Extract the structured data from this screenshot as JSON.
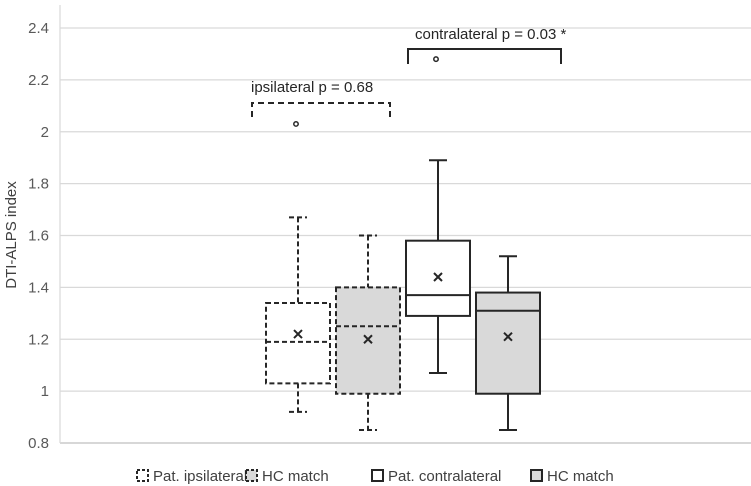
{
  "chart_data": {
    "type": "box",
    "title": "",
    "xlabel": "",
    "ylabel": "DTI-ALPS index",
    "ylim": [
      0.8,
      2.4
    ],
    "yticks": [
      "0.8",
      "1",
      "1.2",
      "1.4",
      "1.6",
      "1.8",
      "2",
      "2.2",
      "2.4"
    ],
    "grid": true,
    "legend_position": "bottom",
    "series": [
      {
        "name": "Pat. ipsilateral",
        "style": "dashed",
        "fill": "#ffffff",
        "q1": 1.03,
        "median": 1.19,
        "q3": 1.34,
        "whisker_low": 0.92,
        "whisker_high": 1.67,
        "mean": 1.22,
        "outliers": [
          2.03
        ]
      },
      {
        "name": "HC match",
        "style": "dashed",
        "fill": "#d9d9d9",
        "q1": 0.99,
        "median": 1.25,
        "q3": 1.4,
        "whisker_low": 0.85,
        "whisker_high": 1.6,
        "mean": 1.2,
        "outliers": []
      },
      {
        "name": "Pat. contralateral",
        "style": "solid",
        "fill": "#ffffff",
        "q1": 1.29,
        "median": 1.37,
        "q3": 1.58,
        "whisker_low": 1.07,
        "whisker_high": 1.89,
        "mean": 1.44,
        "outliers": [
          2.28
        ]
      },
      {
        "name": "HC match",
        "style": "solid",
        "fill": "#d9d9d9",
        "q1": 0.99,
        "median": 1.31,
        "q3": 1.38,
        "whisker_low": 0.85,
        "whisker_high": 1.52,
        "mean": 1.21,
        "outliers": []
      }
    ],
    "annotations": [
      {
        "text": "ipsilateral p = 0.68",
        "style": "dashed",
        "spans": [
          0,
          1
        ]
      },
      {
        "text": "contralateral p = 0.03 *",
        "style": "solid",
        "spans": [
          2,
          3
        ]
      }
    ]
  }
}
